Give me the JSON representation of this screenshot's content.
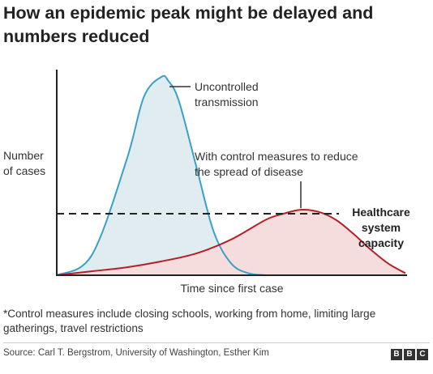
{
  "title_line1": "How an epidemic peak might be delayed and",
  "title_line2": "numbers reduced",
  "footnote_line1": "*Control measures include closing schools, working from home, limiting large",
  "footnote_line2": "gatherings, travel restrictions",
  "source": "Source: Carl T. Bergstrom, University of Washington, Esther Kim",
  "logo_letters": [
    "B",
    "B",
    "C"
  ],
  "colors": {
    "uncontrolled_stroke": "#3aa0c8",
    "uncontrolled_fill": "#dce9ef",
    "controlled_stroke": "#b3202a",
    "controlled_fill": "#f6dddd",
    "capacity_line": "#222222"
  },
  "chart_data": {
    "type": "area",
    "title": "How an epidemic peak might be delayed and numbers reduced",
    "xlabel": "Time since first case",
    "ylabel_lines": [
      "Number",
      "of cases"
    ],
    "xlim": [
      0,
      100
    ],
    "ylim": [
      0,
      100
    ],
    "axis_ticks": false,
    "series": [
      {
        "name_lines": [
          "Uncontrolled",
          "transmission"
        ],
        "x": [
          0,
          10,
          20,
          25,
          30,
          32,
          35,
          40,
          45,
          50,
          55,
          60
        ],
        "values": [
          0,
          10,
          58,
          90,
          100,
          98,
          88,
          55,
          22,
          6,
          1,
          0
        ]
      },
      {
        "name_lines": [
          "With control measures to reduce",
          "the spread of disease"
        ],
        "x": [
          0,
          10,
          20,
          30,
          40,
          50,
          60,
          65,
          70,
          75,
          80,
          85,
          90,
          95,
          100
        ],
        "values": [
          0,
          2,
          4,
          7,
          11,
          18,
          28,
          31,
          33,
          32,
          28,
          21,
          13,
          6,
          1
        ]
      }
    ],
    "reference_line": {
      "label_lines": [
        "Healthcare",
        "system",
        "capacity"
      ],
      "y": 31,
      "style": "dashed"
    }
  }
}
